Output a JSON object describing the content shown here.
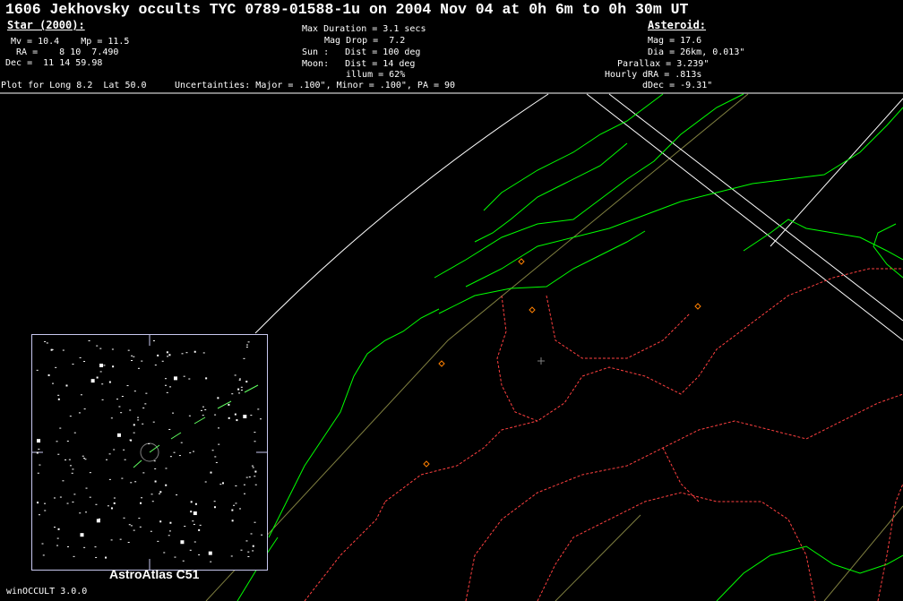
{
  "title": "1606 Jekhovsky occults TYC 0789-01588-1u on 2004 Nov 04 at 0h 6m to 0h 30m UT",
  "star": {
    "header": "Star (2000):",
    "mv_mp": "Mv = 10.4    Mp = 11.5",
    "ra": " RA =    8 10  7.490",
    "dec": "Dec =  11 14 59.98"
  },
  "event": {
    "max_duration": "Max Duration = 3.1 secs",
    "mag_drop": "Mag Drop =  7.2",
    "sun": "Sun :   Dist = 100 deg",
    "moon": "Moon:   Dist = 14 deg",
    "illum": "illum = 62%"
  },
  "asteroid": {
    "header": "Asteroid:",
    "mag": "Mag = 17.6",
    "dia": "Dia = 26km, 0.013\"",
    "parallax": "Parallax = 3.239\"",
    "hourly_dra": "Hourly dRA = .813s",
    "ddec": "dDec = -9.31\""
  },
  "plot_for": "Plot for Long 8.2  Lat 50.0",
  "uncertainties": "Uncertainties: Major = .100\", Minor = .100\", PA = 90",
  "inset_label": "AstroAtlas C51",
  "version": "winOCCULT 3.0.0",
  "colors": {
    "coastline": "#00ff00",
    "borders": "#ff4040",
    "path_lines": "#ffffff",
    "sites": "#ff8000",
    "grid": "#808040",
    "inset_frame": "#c8c8f0"
  }
}
